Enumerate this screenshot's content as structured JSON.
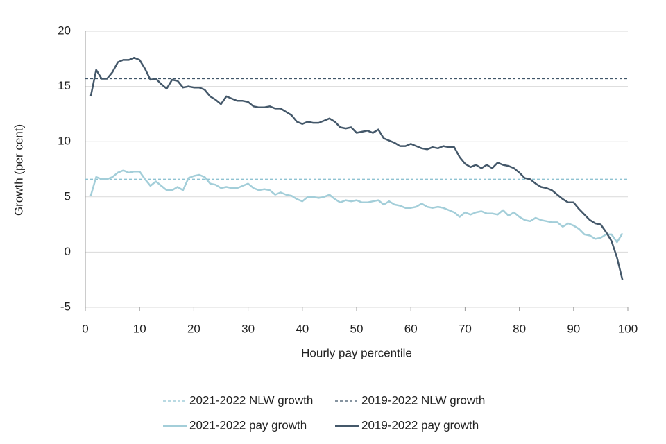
{
  "chart_data": {
    "type": "line",
    "xlabel": "Hourly pay percentile",
    "ylabel": "Growth (per cent)",
    "xlim": [
      0,
      100
    ],
    "xticks": [
      0,
      10,
      20,
      30,
      40,
      50,
      60,
      70,
      80,
      90,
      100
    ],
    "ylim": [
      -5,
      20
    ],
    "yticks": [
      -5,
      0,
      5,
      10,
      15,
      20
    ],
    "grid": true,
    "x": [
      1,
      2,
      3,
      4,
      5,
      6,
      7,
      8,
      9,
      10,
      11,
      12,
      13,
      14,
      15,
      16,
      17,
      18,
      19,
      20,
      21,
      22,
      23,
      24,
      25,
      26,
      27,
      28,
      29,
      30,
      31,
      32,
      33,
      34,
      35,
      36,
      37,
      38,
      39,
      40,
      41,
      42,
      43,
      44,
      45,
      46,
      47,
      48,
      49,
      50,
      51,
      52,
      53,
      54,
      55,
      56,
      57,
      58,
      59,
      60,
      61,
      62,
      63,
      64,
      65,
      66,
      67,
      68,
      69,
      70,
      71,
      72,
      73,
      74,
      75,
      76,
      77,
      78,
      79,
      80,
      81,
      82,
      83,
      84,
      85,
      86,
      87,
      88,
      89,
      90,
      91,
      92,
      93,
      94,
      95,
      96,
      97,
      98,
      99
    ],
    "series": [
      {
        "name": "2021-2022 NLW growth",
        "color": "#8fc3d2",
        "dashed": true,
        "y": 6.6
      },
      {
        "name": "2019-2022 NLW growth",
        "color": "#3f5568",
        "dashed": true,
        "y": 15.7
      },
      {
        "name": "2021-2022 pay growth",
        "color": "#a3ced9",
        "dashed": false,
        "values": [
          5.1,
          6.8,
          6.6,
          6.6,
          6.8,
          7.2,
          7.4,
          7.2,
          7.3,
          7.3,
          6.6,
          6.0,
          6.4,
          6.0,
          5.6,
          5.6,
          5.9,
          5.6,
          6.7,
          6.9,
          7.0,
          6.8,
          6.2,
          6.1,
          5.8,
          5.9,
          5.8,
          5.8,
          6.0,
          6.2,
          5.8,
          5.6,
          5.7,
          5.6,
          5.2,
          5.4,
          5.2,
          5.1,
          4.8,
          4.6,
          5.0,
          5.0,
          4.9,
          5.0,
          5.2,
          4.8,
          4.5,
          4.7,
          4.6,
          4.7,
          4.5,
          4.5,
          4.6,
          4.7,
          4.3,
          4.6,
          4.3,
          4.2,
          4.0,
          4.0,
          4.1,
          4.4,
          4.1,
          4.0,
          4.1,
          4.0,
          3.8,
          3.6,
          3.2,
          3.6,
          3.4,
          3.6,
          3.7,
          3.5,
          3.5,
          3.4,
          3.8,
          3.3,
          3.6,
          3.2,
          2.9,
          2.8,
          3.1,
          2.9,
          2.8,
          2.7,
          2.7,
          2.3,
          2.6,
          2.4,
          2.1,
          1.6,
          1.5,
          1.2,
          1.3,
          1.6,
          1.6,
          0.9,
          1.7
        ]
      },
      {
        "name": "2019-2022 pay growth",
        "color": "#44586a",
        "dashed": false,
        "values": [
          14.1,
          16.5,
          15.7,
          15.7,
          16.3,
          17.2,
          17.4,
          17.4,
          17.6,
          17.4,
          16.6,
          15.6,
          15.7,
          15.2,
          14.8,
          15.6,
          15.5,
          14.9,
          15.0,
          14.9,
          14.9,
          14.7,
          14.1,
          13.8,
          13.4,
          14.1,
          13.9,
          13.7,
          13.7,
          13.6,
          13.2,
          13.1,
          13.1,
          13.2,
          13.0,
          13.0,
          12.7,
          12.4,
          11.8,
          11.6,
          11.8,
          11.7,
          11.7,
          11.9,
          12.1,
          11.8,
          11.3,
          11.2,
          11.3,
          10.8,
          10.9,
          11.0,
          10.8,
          11.1,
          10.3,
          10.1,
          9.9,
          9.6,
          9.6,
          9.8,
          9.6,
          9.4,
          9.3,
          9.5,
          9.4,
          9.6,
          9.5,
          9.5,
          8.6,
          8.0,
          7.7,
          7.9,
          7.6,
          7.9,
          7.6,
          8.1,
          7.9,
          7.8,
          7.6,
          7.2,
          6.7,
          6.6,
          6.2,
          5.9,
          5.8,
          5.6,
          5.2,
          4.8,
          4.5,
          4.5,
          3.9,
          3.4,
          2.9,
          2.6,
          2.5,
          1.8,
          1.0,
          -0.5,
          -2.5
        ]
      }
    ]
  }
}
